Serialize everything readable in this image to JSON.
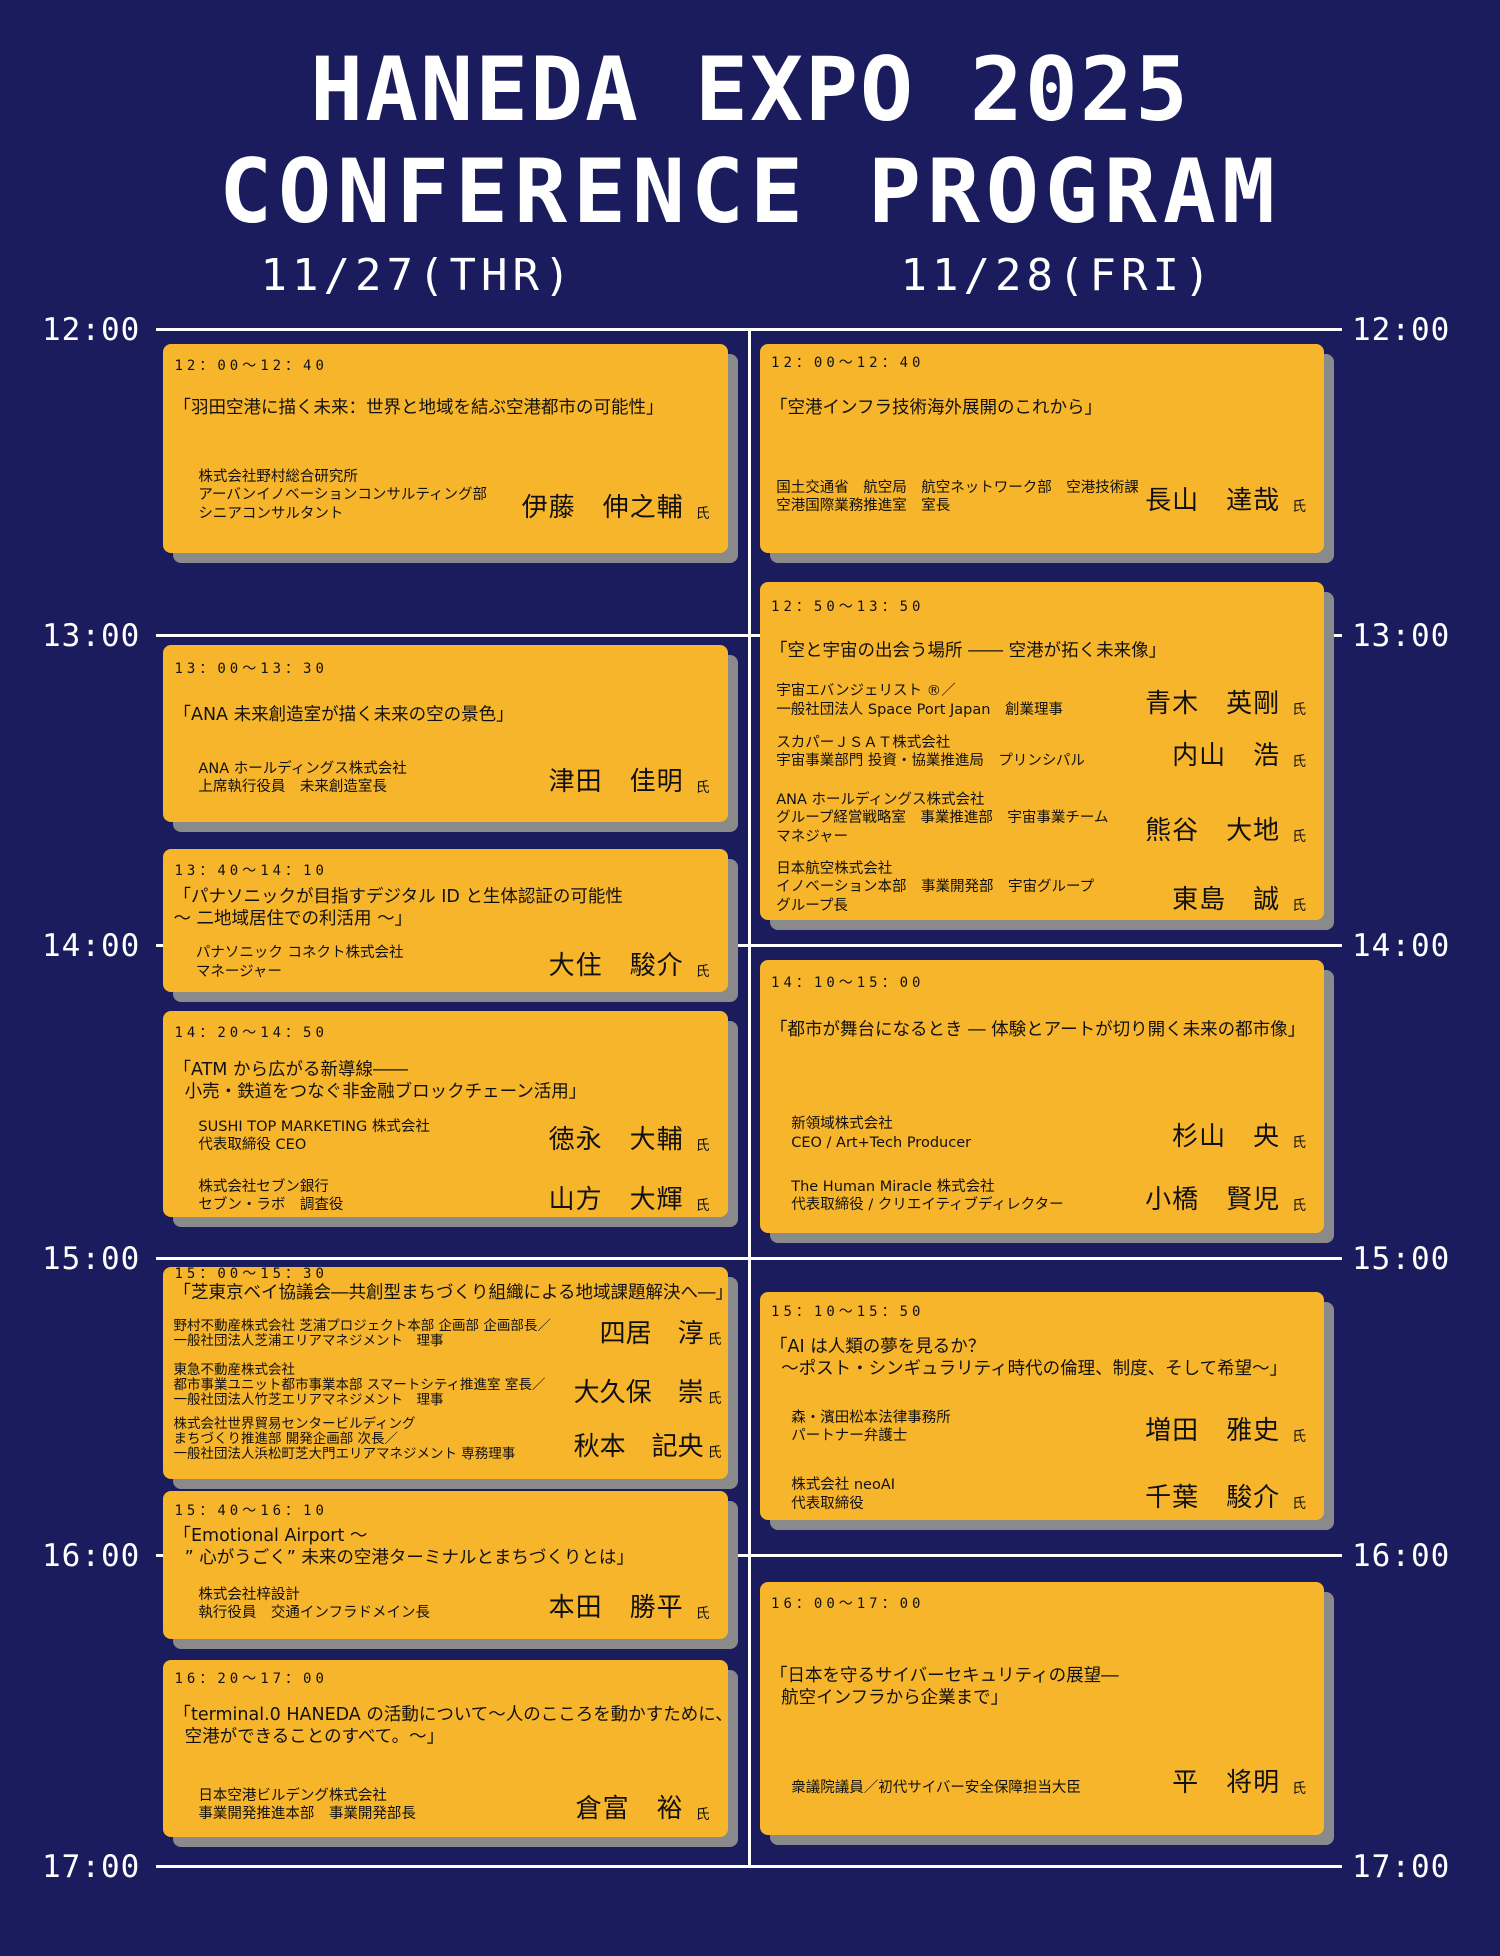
{
  "header": {
    "line1": "HANEDA EXPO 2025",
    "line2": "CONFERENCE PROGRAM"
  },
  "days": [
    "11/27(THR)",
    "11/28(FRI)"
  ],
  "times": [
    "12:00",
    "13:00",
    "14:00",
    "15:00",
    "16:00",
    "17:00"
  ],
  "honorific": "氏",
  "colors": {
    "background": "#1A1C5E",
    "card": "#F7B52C",
    "card_shadow": "#8A8A8A",
    "lines": "#FFFFFF"
  },
  "sessions": {
    "thu": [
      {
        "time": "12：00〜12：40",
        "title": "「羽田空港に描く未来：世界と地域を結ぶ空港都市の可能性」",
        "speakers": [
          {
            "org": "株式会社野村総合研究所\nアーバンイノベーションコンサルティング部\nシニアコンサルタント",
            "name": "伊藤　伸之輔"
          }
        ]
      },
      {
        "time": "13：00〜13：30",
        "title": "「ANA 未来創造室が描く未来の空の景色」",
        "speakers": [
          {
            "org": "ANA ホールディングス株式会社\n上席執行役員　未来創造室長",
            "name": "津田　佳明"
          }
        ]
      },
      {
        "time": "13：40〜14：10",
        "title": "「パナソニックが目指すデジタル ID と生体認証の可能性\n〜 二地域居住での利活用 〜」",
        "speakers": [
          {
            "org": "パナソニック コネクト株式会社\nマネージャー",
            "name": "大住　駿介"
          }
        ]
      },
      {
        "time": "14：20〜14：50",
        "title": "「ATM から広がる新導線――\n  小売・鉄道をつなぐ非金融ブロックチェーン活用」",
        "speakers": [
          {
            "org": "SUSHI TOP MARKETING 株式会社\n代表取締役 CEO",
            "name": "徳永　大輔"
          },
          {
            "org": "株式会社セブン銀行\nセブン・ラボ　調査役",
            "name": "山方　大輝"
          }
        ]
      },
      {
        "time": "15：00〜15：30",
        "title": "「芝東京ベイ協議会―共創型まちづくり組織による地域課題解決へ―」",
        "speakers": [
          {
            "org": "野村不動産株式会社 芝浦プロジェクト本部 企画部 企画部長／\n一般社団法人芝浦エリアマネジメント　理事",
            "name": "四居　淳"
          },
          {
            "org": "東急不動産株式会社\n都市事業ユニット都市事業本部 スマートシティ推進室 室長／\n一般社団法人竹芝エリアマネジメント　理事",
            "name": "大久保　崇"
          },
          {
            "org": "株式会社世界貿易センタービルディング\nまちづくり推進部 開発企画部 次長／\n一般社団法人浜松町芝大門エリアマネジメント 専務理事",
            "name": "秋本　記央"
          }
        ]
      },
      {
        "time": "15：40〜16：10",
        "title": "「Emotional Airport 〜\n  ” 心がうごく” 未来の空港ターミナルとまちづくりとは」",
        "speakers": [
          {
            "org": "株式会社梓設計\n執行役員　交通インフラドメイン長",
            "name": "本田　勝平"
          }
        ]
      },
      {
        "time": "16：20〜17：00",
        "title": "「terminal.0 HANEDA の活動について〜人のこころを動かすために、\n  空港ができることのすべて。〜」",
        "speakers": [
          {
            "org": "日本空港ビルデング株式会社\n事業開発推進本部　事業開発部長",
            "name": "倉富　裕"
          }
        ]
      }
    ],
    "fri": [
      {
        "time": "12：00〜12：40",
        "title": "「空港インフラ技術海外展開のこれから」",
        "speakers": [
          {
            "org": "国土交通省　航空局　航空ネットワーク部　空港技術課\n空港国際業務推進室　室長",
            "name": "長山　達哉"
          }
        ]
      },
      {
        "time": "12：50〜13：50",
        "title": "「空と宇宙の出会う場所 ―― 空港が拓く未来像」",
        "speakers": [
          {
            "org": "宇宙エバンジェリスト ®／\n一般社団法人 Space Port Japan　創業理事",
            "name": "青木　英剛"
          },
          {
            "org": "スカパーＪＳＡＴ株式会社\n宇宙事業部門 投資・協業推進局　プリンシパル",
            "name": "内山　浩"
          },
          {
            "org": "ANA ホールディングス株式会社\nグループ経営戦略室　事業推進部　宇宙事業チーム\nマネジャー",
            "name": "熊谷　大地"
          },
          {
            "org": "日本航空株式会社\nイノベーション本部　事業開発部　宇宙グループ\nグループ長",
            "name": "東島　誠"
          }
        ]
      },
      {
        "time": "14：10〜15：00",
        "title": "「都市が舞台になるとき ― 体験とアートが切り開く未来の都市像」",
        "speakers": [
          {
            "org": "新領域株式会社\nCEO / Art+Tech Producer",
            "name": "杉山　央"
          },
          {
            "org": "The Human Miracle 株式会社\n代表取締役 / クリエイティブディレクター",
            "name": "小橋　賢児"
          }
        ]
      },
      {
        "time": "15：10〜15：50",
        "title": "「AI は人類の夢を見るか？\n  〜ポスト・シンギュラリティ時代の倫理、制度、そして希望〜」",
        "speakers": [
          {
            "org": "森・濱田松本法律事務所\nパートナー弁護士",
            "name": "増田　雅史"
          },
          {
            "org": "株式会社 neoAI\n代表取締役",
            "name": "千葉　駿介"
          }
        ]
      },
      {
        "time": "16：00〜17：00",
        "title": "「日本を守るサイバーセキュリティの展望―\n  航空インフラから企業まで」",
        "speakers": [
          {
            "org": "衆議院議員／初代サイバー安全保障担当大臣",
            "name": "平　将明"
          }
        ]
      }
    ]
  }
}
